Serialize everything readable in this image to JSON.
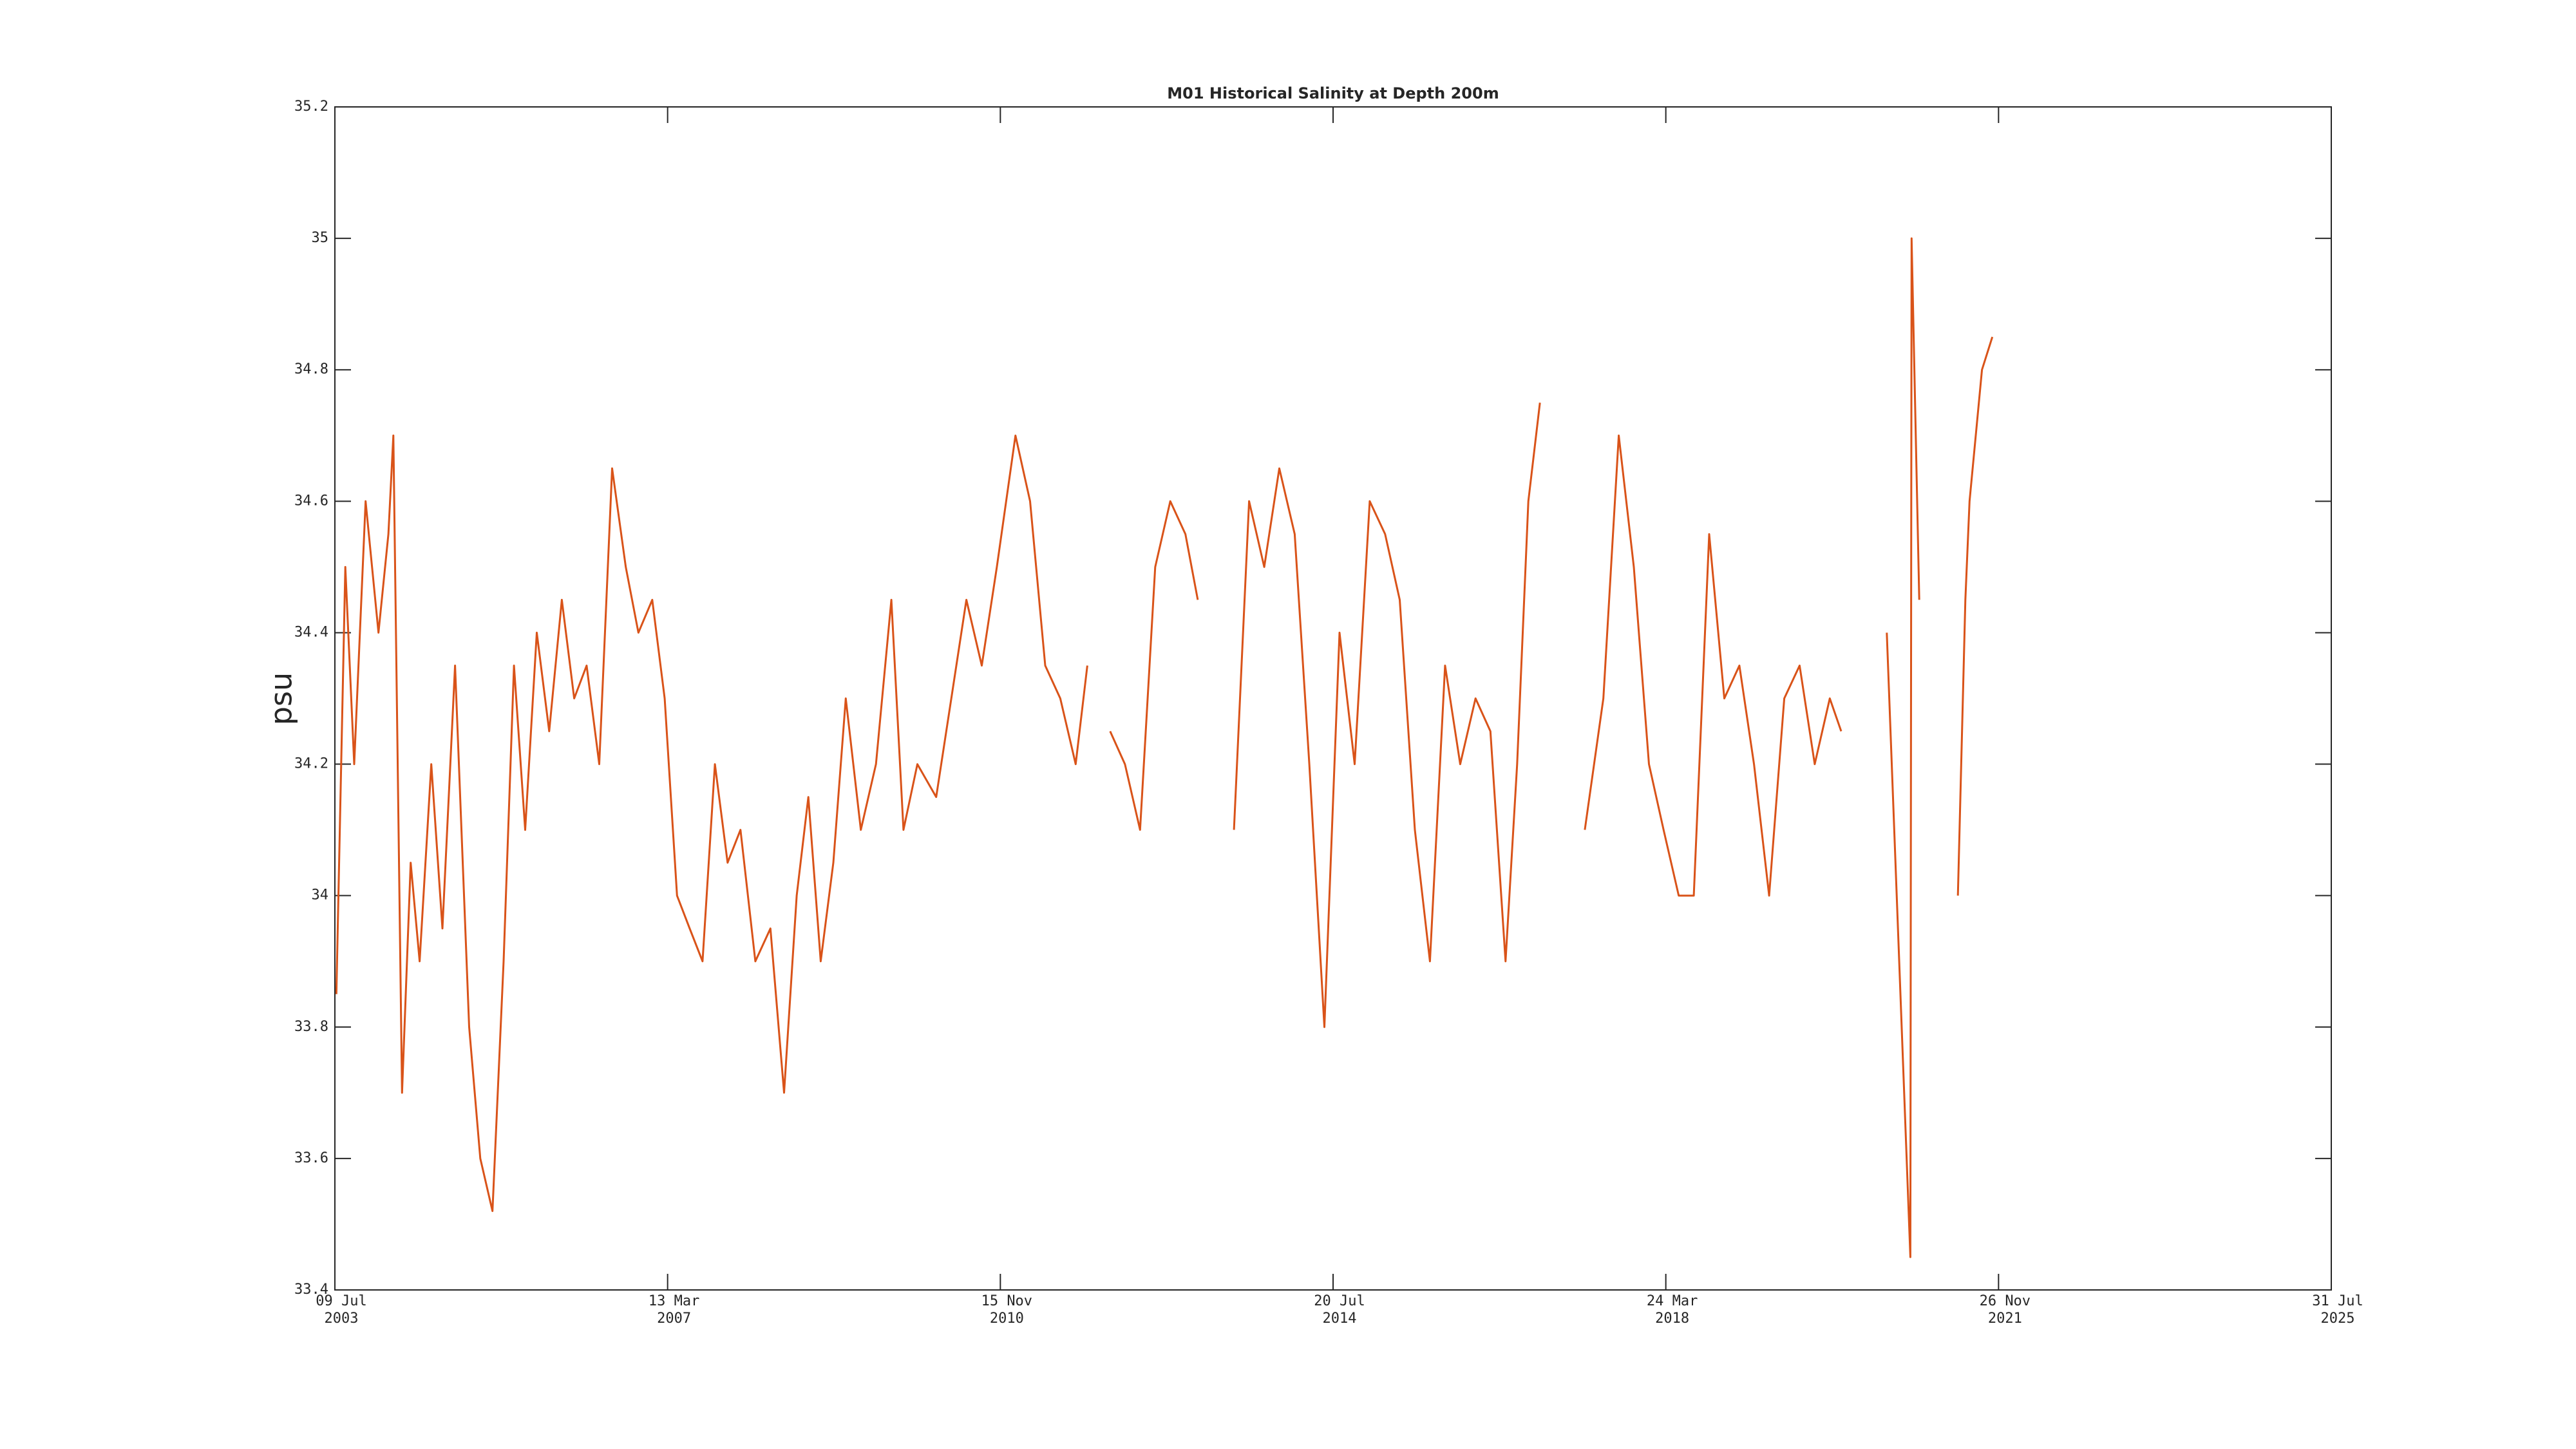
{
  "chart_data": {
    "type": "line",
    "title": "M01 Historical Salinity at Depth 200m",
    "y_label": "psu",
    "color": "#d95319",
    "xlim": [
      "2003-07-09",
      "2025-07-31"
    ],
    "xticks": [
      {
        "value": "2003-07-09",
        "label": [
          "09 Jul",
          "2003"
        ]
      },
      {
        "value": "2007-03-13",
        "label": [
          "13 Mar",
          "2007"
        ]
      },
      {
        "value": "2010-11-15",
        "label": [
          "15 Nov",
          "2010"
        ]
      },
      {
        "value": "2014-07-20",
        "label": [
          "20 Jul",
          "2014"
        ]
      },
      {
        "value": "2018-03-24",
        "label": [
          "24 Mar",
          "2018"
        ]
      },
      {
        "value": "2021-11-26",
        "label": [
          "26 Nov",
          "2021"
        ]
      },
      {
        "value": "2025-07-31",
        "label": [
          "31 Jul",
          "2025"
        ]
      }
    ],
    "ylim": [
      33.4,
      35.2
    ],
    "yticks": [
      33.4,
      33.6,
      33.8,
      34,
      34.2,
      34.4,
      34.6,
      34.8,
      35,
      35.2
    ],
    "x": [
      "2003-07-15",
      "2003-08-20",
      "2003-09-25",
      "2003-11-10",
      "2004-01-01",
      "2004-02-10",
      "2004-03-01",
      "2004-04-05",
      "2004-05-10",
      "2004-06-15",
      "2004-08-01",
      "2004-09-15",
      "2004-11-05",
      "2005-01-01",
      "2005-02-15",
      "2005-04-05",
      "2005-05-20",
      "2005-07-01",
      "2005-08-15",
      "2005-10-01",
      "2005-11-20",
      "2006-01-10",
      "2006-03-01",
      "2006-04-20",
      "2006-06-10",
      "2006-08-01",
      "2006-09-25",
      "2006-11-15",
      "2007-01-10",
      "2007-03-01",
      "2007-04-20",
      "2007-06-10",
      "2007-08-01",
      "2007-09-20",
      "2007-11-10",
      "2008-01-01",
      "2008-03-01",
      "2008-05-01",
      "2008-06-25",
      "2008-08-15",
      "2008-10-01",
      "2008-11-20",
      "2009-01-10",
      "2009-03-01",
      "2009-05-01",
      "2009-07-01",
      "2009-09-01",
      "2009-10-20",
      "2009-12-15",
      "2010-03-01",
      "2010-05-01",
      "2010-07-01",
      "2010-09-01",
      "2010-11-01",
      "2011-01-15",
      "2011-03-15",
      "2011-05-15",
      "2011-07-15",
      "2011-09-15",
      "2011-11-01",
      "2011-12-15",
      "2012-02-01",
      "2012-04-01",
      "2012-06-01",
      "2012-08-01",
      "2012-10-01",
      "2012-12-01",
      "2013-01-20",
      "2013-04-01",
      "2013-06-15",
      "2013-08-15",
      "2013-10-15",
      "2013-12-15",
      "2014-02-15",
      "2014-04-15",
      "2014-06-15",
      "2014-08-15",
      "2014-10-15",
      "2014-12-15",
      "2015-02-15",
      "2015-04-15",
      "2015-06-15",
      "2015-08-15",
      "2015-10-15",
      "2015-12-15",
      "2016-02-15",
      "2016-04-15",
      "2016-06-15",
      "2016-08-01",
      "2016-09-15",
      "2016-11-01",
      "2017-01-15",
      "2017-05-01",
      "2017-07-15",
      "2017-09-15",
      "2017-11-15",
      "2018-01-15",
      "2018-03-15",
      "2018-05-15",
      "2018-07-15",
      "2018-09-15",
      "2018-11-15",
      "2019-01-15",
      "2019-03-15",
      "2019-05-15",
      "2019-07-15",
      "2019-09-15",
      "2019-11-15",
      "2020-01-15",
      "2020-03-01",
      "2020-06-01",
      "2020-09-01",
      "2020-12-05",
      "2020-12-10",
      "2021-01-10",
      "2021-02-15",
      "2021-06-15",
      "2021-07-15",
      "2021-08-01",
      "2021-09-20",
      "2021-11-01"
    ],
    "values": [
      33.85,
      34.5,
      34.2,
      34.6,
      34.4,
      34.55,
      34.7,
      33.7,
      34.05,
      33.9,
      34.2,
      33.95,
      34.35,
      33.8,
      33.6,
      33.52,
      33.9,
      34.35,
      34.1,
      34.4,
      34.25,
      34.45,
      34.3,
      34.35,
      34.2,
      34.65,
      34.5,
      34.4,
      34.45,
      34.3,
      34.0,
      33.95,
      33.9,
      34.2,
      34.05,
      34.1,
      33.9,
      33.95,
      33.7,
      34.0,
      34.15,
      33.9,
      34.05,
      34.3,
      34.1,
      34.2,
      34.45,
      34.1,
      34.2,
      34.15,
      34.3,
      34.45,
      34.35,
      34.5,
      34.7,
      34.6,
      34.35,
      34.3,
      34.2,
      34.35,
      null,
      34.25,
      34.2,
      34.1,
      34.5,
      34.6,
      34.55,
      34.45,
      null,
      34.1,
      34.6,
      34.5,
      34.65,
      34.55,
      34.2,
      33.8,
      34.4,
      34.2,
      34.6,
      34.55,
      34.45,
      34.1,
      33.9,
      34.35,
      34.2,
      34.3,
      34.25,
      33.9,
      34.2,
      34.6,
      34.75,
      null,
      34.1,
      34.3,
      34.7,
      34.5,
      34.2,
      34.1,
      34.0,
      34.0,
      34.55,
      34.3,
      34.35,
      34.2,
      34.0,
      34.3,
      34.35,
      34.2,
      34.3,
      34.25,
      null,
      34.4,
      33.45,
      35.0,
      34.45,
      null,
      34.0,
      34.45,
      34.6,
      34.8,
      34.85
    ]
  }
}
